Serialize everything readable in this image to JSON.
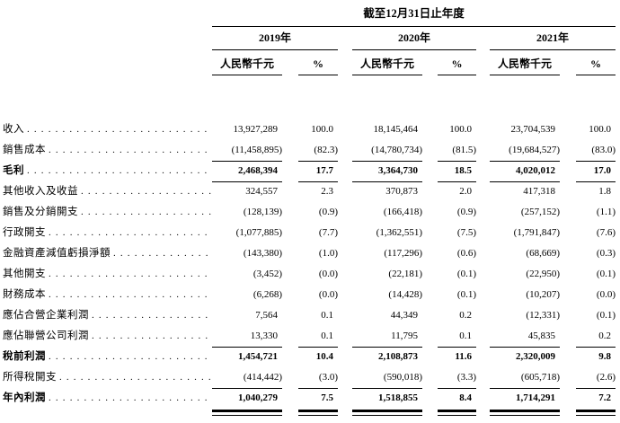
{
  "table": {
    "title": "截至12月31日止年度",
    "year_headers": [
      "2019年",
      "2020年",
      "2021年"
    ],
    "amount_unit_header": "人民幣千元",
    "percent_header": "%",
    "rows": [
      {
        "label": "收入",
        "values": [
          "13,927,289",
          "100.0",
          "18,145,464",
          "100.0",
          "23,704,539",
          "100.0"
        ],
        "bold": false,
        "rule_below": false
      },
      {
        "label": "銷售成本",
        "values": [
          "(11,458,895)",
          "(82.3)",
          "(14,780,734)",
          "(81.5)",
          "(19,684,527)",
          "(83.0)"
        ],
        "bold": false,
        "rule_below": true
      },
      {
        "label": "毛利",
        "values": [
          "2,468,394",
          "17.7",
          "3,364,730",
          "18.5",
          "4,020,012",
          "17.0"
        ],
        "bold": true,
        "rule_below": true
      },
      {
        "label": "其他收入及收益",
        "values": [
          "324,557",
          "2.3",
          "370,873",
          "2.0",
          "417,318",
          "1.8"
        ],
        "bold": false,
        "rule_below": false
      },
      {
        "label": "銷售及分銷開支",
        "values": [
          "(128,139)",
          "(0.9)",
          "(166,418)",
          "(0.9)",
          "(257,152)",
          "(1.1)"
        ],
        "bold": false,
        "rule_below": false
      },
      {
        "label": "行政開支",
        "values": [
          "(1,077,885)",
          "(7.7)",
          "(1,362,551)",
          "(7.5)",
          "(1,791,847)",
          "(7.6)"
        ],
        "bold": false,
        "rule_below": false
      },
      {
        "label": "金融資產減值虧損淨額",
        "values": [
          "(143,380)",
          "(1.0)",
          "(117,296)",
          "(0.6)",
          "(68,669)",
          "(0.3)"
        ],
        "bold": false,
        "rule_below": false
      },
      {
        "label": "其他開支",
        "values": [
          "(3,452)",
          "(0.0)",
          "(22,181)",
          "(0.1)",
          "(22,950)",
          "(0.1)"
        ],
        "bold": false,
        "rule_below": false
      },
      {
        "label": "財務成本",
        "values": [
          "(6,268)",
          "(0.0)",
          "(14,428)",
          "(0.1)",
          "(10,207)",
          "(0.0)"
        ],
        "bold": false,
        "rule_below": false
      },
      {
        "label": "應佔合營企業利潤",
        "values": [
          "7,564",
          "0.1",
          "44,349",
          "0.2",
          "(12,331)",
          "(0.1)"
        ],
        "bold": false,
        "rule_below": false
      },
      {
        "label": "應佔聯營公司利潤",
        "values": [
          "13,330",
          "0.1",
          "11,795",
          "0.1",
          "45,835",
          "0.2"
        ],
        "bold": false,
        "rule_below": true
      },
      {
        "label": "稅前利潤",
        "values": [
          "1,454,721",
          "10.4",
          "2,108,873",
          "11.6",
          "2,320,009",
          "9.8"
        ],
        "bold": true,
        "rule_below": false
      },
      {
        "label": "所得稅開支",
        "values": [
          "(414,442)",
          "(3.0)",
          "(590,018)",
          "(3.3)",
          "(605,718)",
          "(2.6)"
        ],
        "bold": false,
        "rule_below": true
      },
      {
        "label": "年內利潤",
        "values": [
          "1,040,279",
          "7.5",
          "1,518,855",
          "8.4",
          "1,714,291",
          "7.2"
        ],
        "bold": true,
        "rule_below": false,
        "double_rule_below": true
      }
    ]
  }
}
